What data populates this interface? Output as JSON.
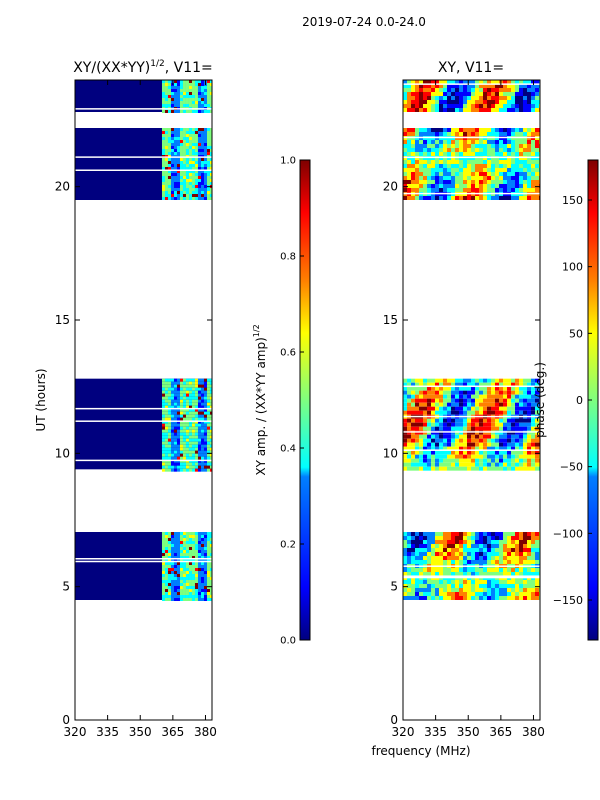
{
  "figure": {
    "suptitle": "2019-07-24 0.0-24.0",
    "shared_xlabel": "frequency (MHz)"
  },
  "colors": {
    "jet": [
      "#00007f",
      "#0000ff",
      "#007fff",
      "#00ffff",
      "#7fff7f",
      "#ffff00",
      "#ff7f00",
      "#ff0000",
      "#7f0000"
    ],
    "background": "#ffffff",
    "flag_gap": "#ffffff"
  },
  "chart_data": [
    {
      "type": "heatmap",
      "title_main": "XY/(XX*YY)",
      "title_sup": "1/2",
      "title_suffix": ", V11=",
      "xlabel": "",
      "ylabel": "UT (hours)",
      "xlim": [
        320,
        383
      ],
      "ylim": [
        0,
        24
      ],
      "xticks": [
        320,
        335,
        350,
        365,
        380
      ],
      "yticks": [
        0,
        5,
        10,
        15,
        20
      ],
      "data_time_ranges_hours": [
        [
          4.5,
          7.05
        ],
        [
          9.4,
          12.8
        ],
        [
          19.5,
          22.2
        ],
        [
          22.8,
          24.0
        ]
      ],
      "bright_band_mhz": [
        360,
        383
      ],
      "colorbar": {
        "label_main": "XY amp. / (XX*YY amp)",
        "label_sup": "1/2",
        "range": [
          0.0,
          1.0
        ],
        "ticks": [
          "0.0",
          "0.2",
          "0.4",
          "0.6",
          "0.8",
          "1.0"
        ]
      }
    },
    {
      "type": "heatmap",
      "title_main": "XY, V11=",
      "xlabel": "frequency (MHz)",
      "ylabel": "",
      "xlim": [
        320,
        383
      ],
      "ylim": [
        0,
        24
      ],
      "xticks": [
        320,
        335,
        350,
        365,
        380
      ],
      "yticks": [
        0,
        5,
        10,
        15,
        20
      ],
      "data_time_ranges_hours": [
        [
          4.5,
          7.05
        ],
        [
          9.4,
          12.8
        ],
        [
          19.5,
          22.2
        ],
        [
          22.8,
          24.0
        ]
      ],
      "colorbar": {
        "label": "phase (deg.)",
        "range": [
          -180,
          180
        ],
        "ticks": [
          "−150",
          "−100",
          "−50",
          "0",
          "50",
          "100",
          "150"
        ],
        "tick_values": [
          -150,
          -100,
          -50,
          0,
          50,
          100,
          150
        ]
      }
    }
  ]
}
